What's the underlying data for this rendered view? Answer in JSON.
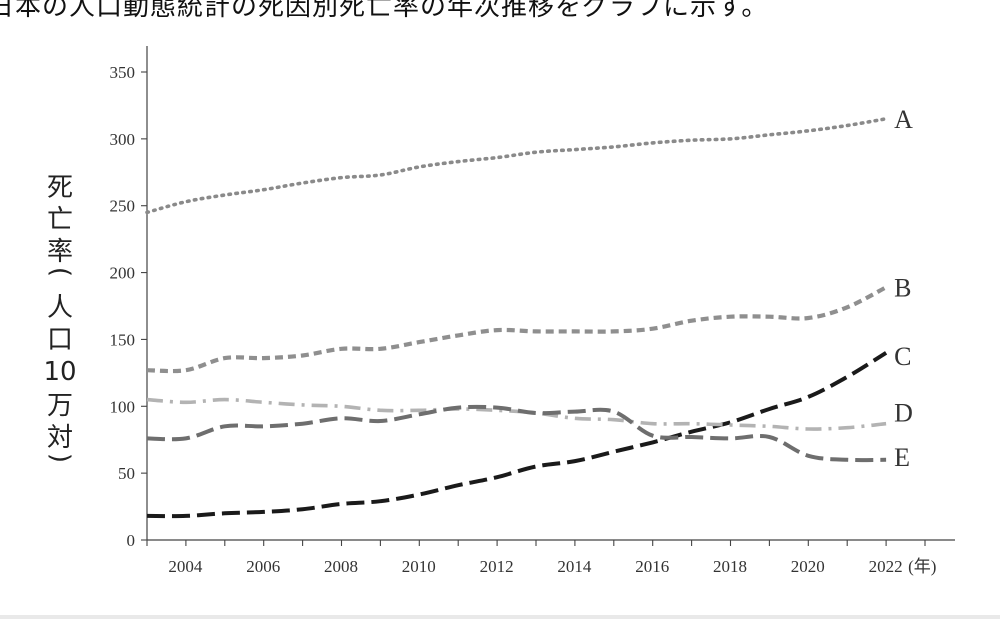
{
  "caption": "日本の人口動態統計の死因別死亡率の年次推移をグラフに示す。",
  "chart_data": {
    "type": "line",
    "ylabel": "死亡率(人口10万対)",
    "xunit": "(年)",
    "xlim": [
      2003,
      2023.5
    ],
    "ylim": [
      0,
      370
    ],
    "yticks": [
      0,
      50,
      100,
      150,
      200,
      250,
      300,
      350
    ],
    "xtick_labels": [
      2004,
      2006,
      2008,
      2010,
      2012,
      2014,
      2016,
      2018,
      2020,
      2022
    ],
    "x": [
      2003,
      2004,
      2005,
      2006,
      2007,
      2008,
      2009,
      2010,
      2011,
      2012,
      2013,
      2014,
      2015,
      2016,
      2017,
      2018,
      2019,
      2020,
      2021,
      2022
    ],
    "series": [
      {
        "name": "A",
        "color": "#8a8a8a",
        "dash": "dotted",
        "values": [
          245,
          253,
          258,
          262,
          267,
          271,
          273,
          279,
          283,
          286,
          290,
          292,
          294,
          297,
          299,
          300,
          303,
          306,
          310,
          315
        ]
      },
      {
        "name": "B",
        "color": "#8f8f8f",
        "dash": "short-dash",
        "values": [
          127,
          127,
          136,
          136,
          138,
          143,
          143,
          148,
          153,
          157,
          156,
          156,
          156,
          158,
          164,
          167,
          167,
          166,
          174,
          189
        ]
      },
      {
        "name": "C",
        "color": "#1a1a1a",
        "dash": "long-dash",
        "values": [
          18,
          18,
          20,
          21,
          23,
          27,
          29,
          34,
          41,
          47,
          55,
          59,
          66,
          73,
          81,
          88,
          98,
          107,
          122,
          140
        ]
      },
      {
        "name": "D",
        "color": "#b3b3b3",
        "dash": "dash-dot",
        "values": [
          105,
          103,
          105,
          103,
          101,
          100,
          97,
          97,
          98,
          97,
          95,
          91,
          90,
          87,
          87,
          86,
          85,
          83,
          84,
          87
        ]
      },
      {
        "name": "E",
        "color": "#6e6e6e",
        "dash": "long-dash",
        "values": [
          76,
          76,
          85,
          85,
          87,
          91,
          89,
          94,
          99,
          99,
          95,
          96,
          96,
          78,
          77,
          76,
          77,
          63,
          60,
          60
        ]
      }
    ]
  }
}
